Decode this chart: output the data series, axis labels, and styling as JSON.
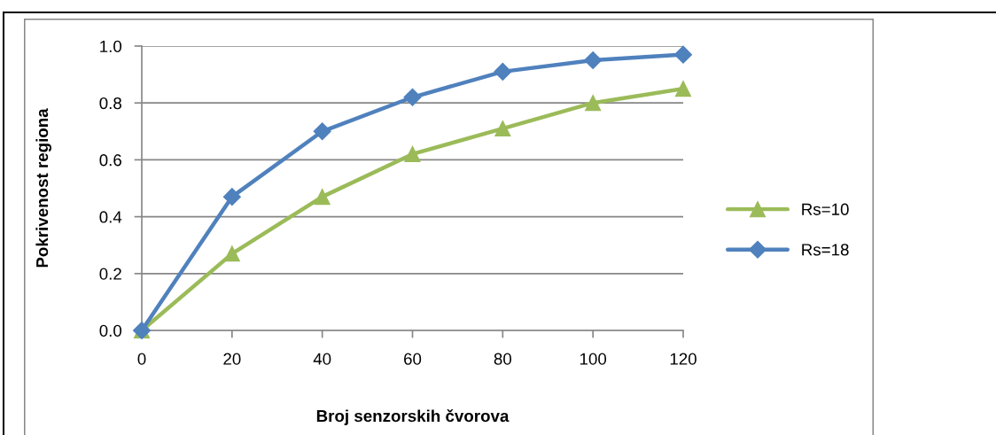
{
  "chart_data": {
    "type": "line",
    "xlabel": "Broj senzorskih čvorova",
    "ylabel": "Pokrivenost regiona",
    "x": [
      0,
      20,
      40,
      60,
      80,
      100,
      120
    ],
    "xlim": [
      0,
      120
    ],
    "xticks": [
      0,
      20,
      40,
      60,
      80,
      100,
      120
    ],
    "ylim": [
      0,
      1.0
    ],
    "yticks": [
      {
        "value": 0,
        "label": "0.0"
      },
      {
        "value": 0.2,
        "label": "0.2"
      },
      {
        "value": 0.4,
        "label": "0.4"
      },
      {
        "value": 0.6,
        "label": "0.6"
      },
      {
        "value": 0.8,
        "label": "0.8"
      },
      {
        "value": 1.0,
        "label": "1.0"
      }
    ],
    "grid": "y",
    "legend": "right",
    "line_style": "solid",
    "series": [
      {
        "name": "Rs=10",
        "color": "#9bbb59",
        "marker": "triangle",
        "values": [
          0,
          0.27,
          0.47,
          0.62,
          0.71,
          0.8,
          0.85
        ]
      },
      {
        "name": "Rs=18",
        "color": "#4f81bd",
        "marker": "diamond",
        "values": [
          0,
          0.47,
          0.7,
          0.82,
          0.91,
          0.95,
          0.97
        ]
      }
    ]
  }
}
